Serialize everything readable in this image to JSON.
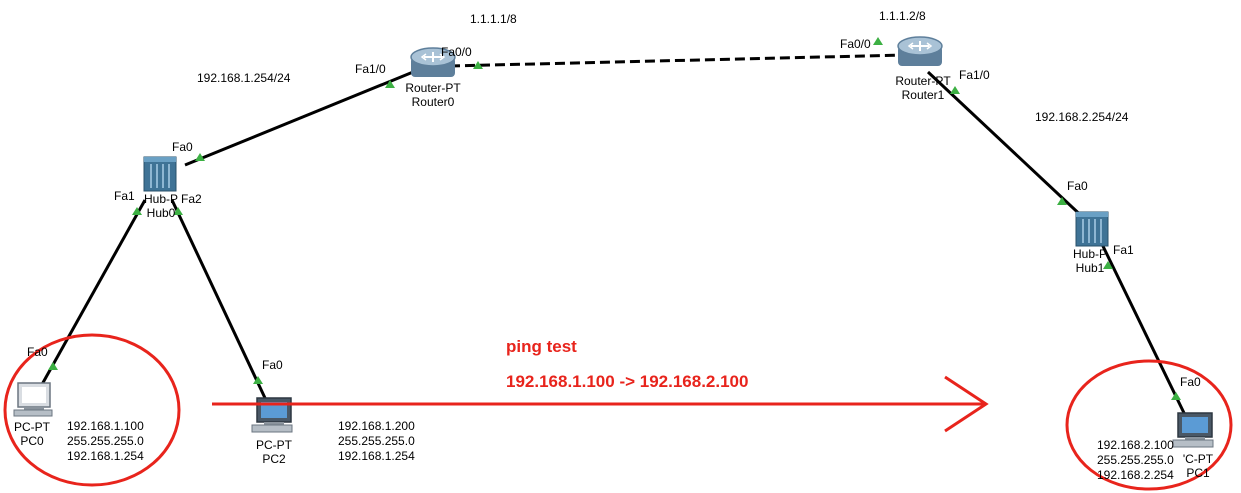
{
  "devices": {
    "router0": {
      "type": "Router-PT",
      "name": "Router0"
    },
    "router1": {
      "type": "Router-PT",
      "name": "Router1"
    },
    "hub0": {
      "type": "Hub-P",
      "name": "Hub0"
    },
    "hub1": {
      "type": "Hub-P",
      "name": "Hub1"
    },
    "pc0": {
      "type": "PC-PT",
      "name": "PC0",
      "config": "192.168.1.100\n255.255.255.0\n192.168.1.254"
    },
    "pc2": {
      "type": "PC-PT",
      "name": "PC2",
      "config": "192.168.1.200\n255.255.255.0\n192.168.1.254"
    },
    "pc1": {
      "type": "'C-PT",
      "name": "PC1",
      "config": "192.168.2.100\n255.255.255.0\n192.168.2.254"
    }
  },
  "networks": {
    "wan": "1.1.1.1/8",
    "wan_r1": "1.1.1.2/8",
    "lan1_gateway": "192.168.1.254/24",
    "lan2_gateway": "192.168.2.254/24"
  },
  "ports": {
    "r0_fa1_0": "Fa1/0",
    "r0_fa0_0": "Fa0/0",
    "r1_fa0_0": "Fa0/0",
    "r1_fa1_0": "Fa1/0",
    "hub0_fa0": "Fa0",
    "hub0_fa1": "Fa1",
    "hub0_fa2": "Fa2",
    "pc0_fa0": "Fa0",
    "pc2_fa0": "Fa0",
    "hub1_fa0": "Fa0",
    "hub1_fa1": "Fa1",
    "pc1_fa0": "Fa0"
  },
  "annotation": {
    "title": "ping test",
    "route": "192.168.1.100 -> 192.168.2.100"
  },
  "colors": {
    "link": "#000000",
    "link_indicator": "#3cb043",
    "annotation": "#e8241c",
    "router_body": "#6f8ea9",
    "hub_body": "#4a7ea0",
    "pc_screen": "#5b9bd5"
  }
}
